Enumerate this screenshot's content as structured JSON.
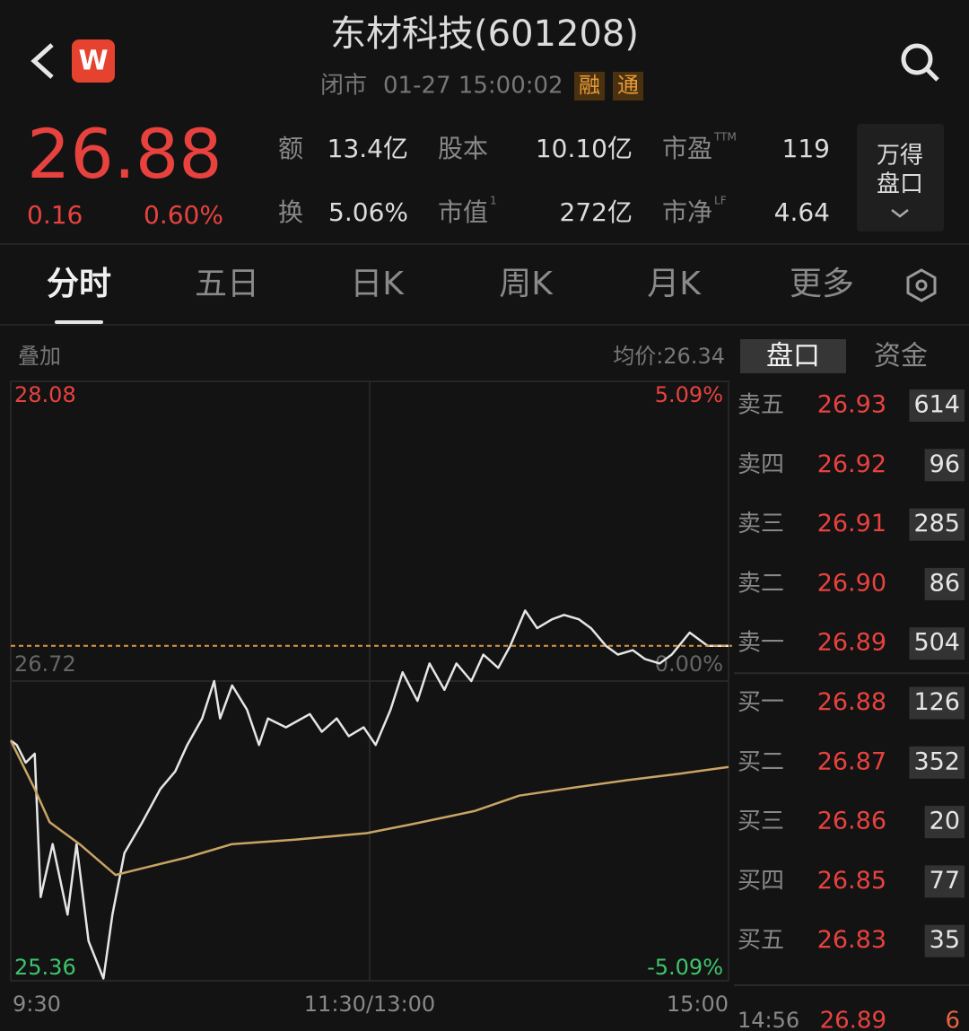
{
  "header": {
    "app_icon": "W",
    "title": "东材科技(601208)",
    "status": "闭市",
    "datetime": "01-27 15:00:02",
    "badges": [
      "融",
      "通"
    ]
  },
  "quote": {
    "price": "26.88",
    "change": "0.16",
    "change_pct": "0.60%",
    "stats": [
      {
        "label": "额",
        "value": "13.4亿"
      },
      {
        "label": "股本",
        "value": "10.10亿"
      },
      {
        "label": "市盈",
        "sup": "TTM",
        "value": "119"
      },
      {
        "label": "换",
        "value": "5.06%"
      },
      {
        "label": "市值",
        "sup": "1",
        "value": "272亿"
      },
      {
        "label": "市净",
        "sup": "LF",
        "value": "4.64"
      }
    ],
    "button": [
      "万得",
      "盘口"
    ]
  },
  "tabs": {
    "items": [
      "分时",
      "五日",
      "日K",
      "周K",
      "月K",
      "更多"
    ],
    "active": 0
  },
  "chart_header": {
    "overlay": "叠加",
    "avg_price": "均价:26.34"
  },
  "chart_data": {
    "type": "line",
    "xlim": [
      0,
      240
    ],
    "xticks": [
      {
        "value": 0,
        "label": "9:30"
      },
      {
        "value": 120,
        "label": "11:30/13:00"
      },
      {
        "value": 240,
        "label": "15:00"
      }
    ],
    "ylim": [
      25.36,
      28.08
    ],
    "yticks": [
      25.36,
      26.72,
      28.08
    ],
    "y2lim": [
      -5.09,
      5.09
    ],
    "y2ticks": [
      {
        "value": -5.09,
        "label": "-5.09%"
      },
      {
        "value": 0,
        "label": "0.00%"
      },
      {
        "value": 5.09,
        "label": "5.09%"
      }
    ],
    "reference_line": 26.88,
    "grid": true,
    "series": [
      {
        "color": "#e6e6e6",
        "x": [
          0,
          2,
          5,
          8,
          10,
          14,
          19,
          22,
          26,
          31,
          34,
          38,
          44,
          50,
          55,
          59,
          64,
          68,
          70,
          74,
          79,
          83,
          86,
          92,
          100,
          104,
          109,
          113,
          118,
          122,
          127,
          131,
          136,
          140,
          145,
          149,
          154,
          158,
          163,
          167,
          172,
          176,
          181,
          185,
          190,
          194,
          199,
          203,
          208,
          212,
          217,
          221,
          227,
          233,
          240
        ],
        "values": [
          26.45,
          26.43,
          26.35,
          26.39,
          25.74,
          25.98,
          25.66,
          25.98,
          25.54,
          25.37,
          25.66,
          25.94,
          26.08,
          26.23,
          26.31,
          26.43,
          26.55,
          26.72,
          26.55,
          26.7,
          26.59,
          26.43,
          26.55,
          26.51,
          26.57,
          26.49,
          26.55,
          26.47,
          26.51,
          26.43,
          26.59,
          26.76,
          26.63,
          26.8,
          26.68,
          26.8,
          26.72,
          26.84,
          26.78,
          26.88,
          27.04,
          26.96,
          27.0,
          27.02,
          27.0,
          26.96,
          26.88,
          26.84,
          26.86,
          26.82,
          26.8,
          26.84,
          26.94,
          26.88,
          26.88
        ]
      },
      {
        "color": "#c9a464",
        "x": [
          0,
          8,
          13,
          23,
          35,
          44,
          59,
          74,
          95,
          119,
          134,
          155,
          170,
          185,
          206,
          224,
          240
        ],
        "values": [
          26.45,
          26.23,
          26.08,
          25.98,
          25.84,
          25.87,
          25.92,
          25.98,
          26.0,
          26.03,
          26.07,
          26.13,
          26.2,
          26.23,
          26.27,
          26.3,
          26.33
        ]
      }
    ]
  },
  "order_book": {
    "tabs": [
      "盘口",
      "资金"
    ],
    "rows": [
      [
        "卖五",
        "26.93",
        "614"
      ],
      [
        "卖四",
        "26.92",
        "96"
      ],
      [
        "卖三",
        "26.91",
        "285"
      ],
      [
        "卖二",
        "26.90",
        "86"
      ],
      [
        "卖一",
        "26.89",
        "504"
      ],
      [
        "买一",
        "26.88",
        "126"
      ],
      [
        "买二",
        "26.87",
        "352"
      ],
      [
        "买三",
        "26.86",
        "20"
      ],
      [
        "买四",
        "26.85",
        "77"
      ],
      [
        "买五",
        "26.83",
        "35"
      ]
    ],
    "last_trade": [
      "14:56",
      "26.89",
      "6"
    ]
  }
}
